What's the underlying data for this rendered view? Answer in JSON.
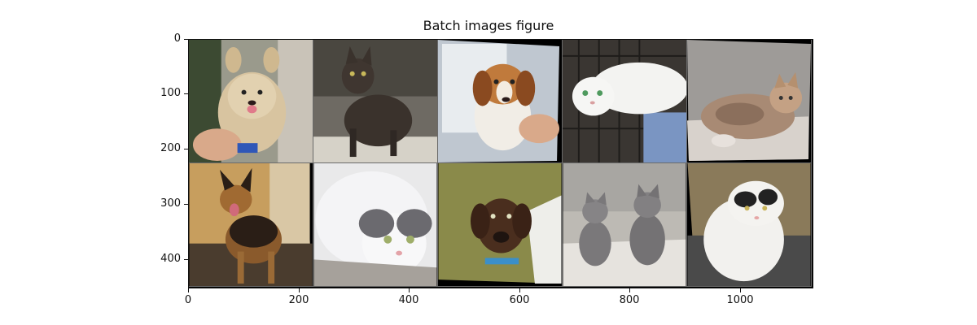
{
  "figure": {
    "title": "Batch images figure",
    "y_ticks": [
      "0",
      "100",
      "200",
      "300",
      "400"
    ],
    "x_ticks": [
      "0",
      "200",
      "400",
      "600",
      "800",
      "1000"
    ]
  },
  "tiles": [
    {
      "name": "tile-yorkie-dog",
      "subject": "small fluffy terrier dog held by a person"
    },
    {
      "name": "tile-black-cat",
      "subject": "dark brown cat sitting and looking up"
    },
    {
      "name": "tile-beagle-puppy",
      "subject": "beagle puppy held in front of papers"
    },
    {
      "name": "tile-white-cat",
      "subject": "white cat lying on a cage floor"
    },
    {
      "name": "tile-calico-cat",
      "subject": "calico cat lying on a blanket"
    },
    {
      "name": "tile-german-shepherd",
      "subject": "german shepherd standing in a hallway"
    },
    {
      "name": "tile-white-gray-cat",
      "subject": "fluffy white and gray cat close-up"
    },
    {
      "name": "tile-brindle-puppy",
      "subject": "brindle puppy with blue collar"
    },
    {
      "name": "tile-gray-kittens",
      "subject": "two gray kittens on a towel"
    },
    {
      "name": "tile-white-black-cat",
      "subject": "white cat with black spots on a rug"
    }
  ]
}
